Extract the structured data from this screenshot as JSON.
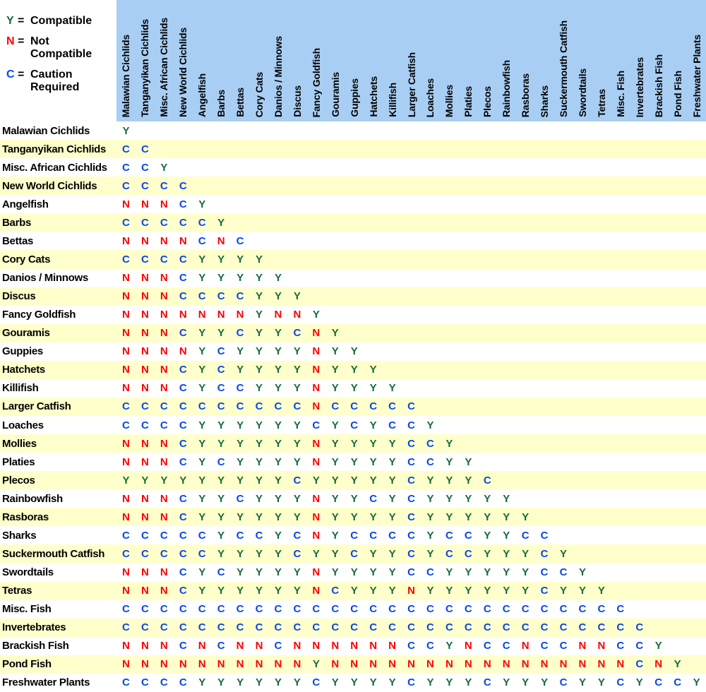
{
  "legend": {
    "separator": "=",
    "items": [
      {
        "symbol": "Y",
        "label": "Compatible"
      },
      {
        "symbol": "N",
        "label": "Not Compatible"
      },
      {
        "symbol": "C",
        "label": "Caution Required"
      }
    ]
  },
  "colors": {
    "compatible": "#166b38",
    "not_compatible": "#fb0000",
    "caution": "#0a46e8",
    "header_bg": "#a9cef3",
    "row_stripe": "#ffffcc"
  },
  "chart_data": {
    "type": "table",
    "layout": "lower-triangular compatibility matrix",
    "value_legend": {
      "Y": "Compatible",
      "N": "Not Compatible",
      "C": "Caution Required"
    },
    "columns": [
      "Malawian Cichlids",
      "Tanganyikan Cichlids",
      "Misc. African Cichlids",
      "New World Cichlids",
      "Angelfish",
      "Barbs",
      "Bettas",
      "Cory Cats",
      "Danios / Minnows",
      "Discus",
      "Fancy Goldfish",
      "Gouramis",
      "Guppies",
      "Hatchets",
      "Killifish",
      "Larger Catfish",
      "Loaches",
      "Mollies",
      "Platies",
      "Plecos",
      "Rainbowfish",
      "Rasboras",
      "Sharks",
      "Suckermouth Catfish",
      "Swordtails",
      "Tetras",
      "Misc. Fish",
      "Invertebrates",
      "Brackish Fish",
      "Pond Fish",
      "Freshwater Plants"
    ],
    "rows": [
      {
        "label": "Malawian Cichlids",
        "values": "Y"
      },
      {
        "label": "Tanganyikan Cichlids",
        "values": "CC"
      },
      {
        "label": "Misc. African Cichlids",
        "values": "CCY"
      },
      {
        "label": "New World Cichlids",
        "values": "CCCC"
      },
      {
        "label": "Angelfish",
        "values": "NNNCY"
      },
      {
        "label": "Barbs",
        "values": "CCCCCY"
      },
      {
        "label": "Bettas",
        "values": "NNNNCNC"
      },
      {
        "label": "Cory Cats",
        "values": "CCCCYYYY"
      },
      {
        "label": "Danios / Minnows",
        "values": "NNNCYYYYY"
      },
      {
        "label": "Discus",
        "values": "NNNCCCCYYY"
      },
      {
        "label": "Fancy Goldfish",
        "values": "NNNNNNNYNNY"
      },
      {
        "label": "Gouramis",
        "values": "NNNCYYCYYCNY"
      },
      {
        "label": "Guppies",
        "values": "NNNNYCYYYYNYY"
      },
      {
        "label": "Hatchets",
        "values": "NNNCYCYYYYNYYY"
      },
      {
        "label": "Killifish",
        "values": "NNNCYCCYYYNYYYY"
      },
      {
        "label": "Larger Catfish",
        "values": "CCCCCCCCCCNCCCCC"
      },
      {
        "label": "Loaches",
        "values": "CCCCYYYYYYCYCYCCY"
      },
      {
        "label": "Mollies",
        "values": "NNNCYYYYYYNYYYYCCY"
      },
      {
        "label": "Platies",
        "values": "NNNCYCYYYYNYYYYCCYY"
      },
      {
        "label": "Plecos",
        "values": "YYYYYYYYYCYYYYYCYYYC"
      },
      {
        "label": "Rainbowfish",
        "values": "NNNCYYCYYYNYYCYCYYYYY"
      },
      {
        "label": "Rasboras",
        "values": "NNNCYYYYYYNYYYYCYYYYYY"
      },
      {
        "label": "Sharks",
        "values": "CCCCCYCCYCNYCCCCYCCYYCC"
      },
      {
        "label": "Suckermouth Catfish",
        "values": "CCCCCYYYYCYYCYYCYCCYYYCY"
      },
      {
        "label": "Swordtails",
        "values": "NNNCYCYYYYNYYYYCCYYYYYCCY"
      },
      {
        "label": "Tetras",
        "values": "NNNCYYYYYYNCYYYNYYYYYYCYYY"
      },
      {
        "label": "Misc. Fish",
        "values": "CCCCCCCCCCCCCCCCCCCCCCCCCCC"
      },
      {
        "label": "Invertebrates",
        "values": "CCCCCCCCCCCCCCCCCCCCCCCCCCCC"
      },
      {
        "label": "Brackish Fish",
        "values": "NNNCNCNNCNNNNNNCCYNCCNCCNNCCY"
      },
      {
        "label": "Pond Fish",
        "values": "NNNNNNNNNNYNNNNNNNNNNNNNNNNCNY"
      },
      {
        "label": "Freshwater Plants",
        "values": "CCCCYYYYYYCYYYYCYYYCYYYCYYCYCCY"
      }
    ]
  }
}
